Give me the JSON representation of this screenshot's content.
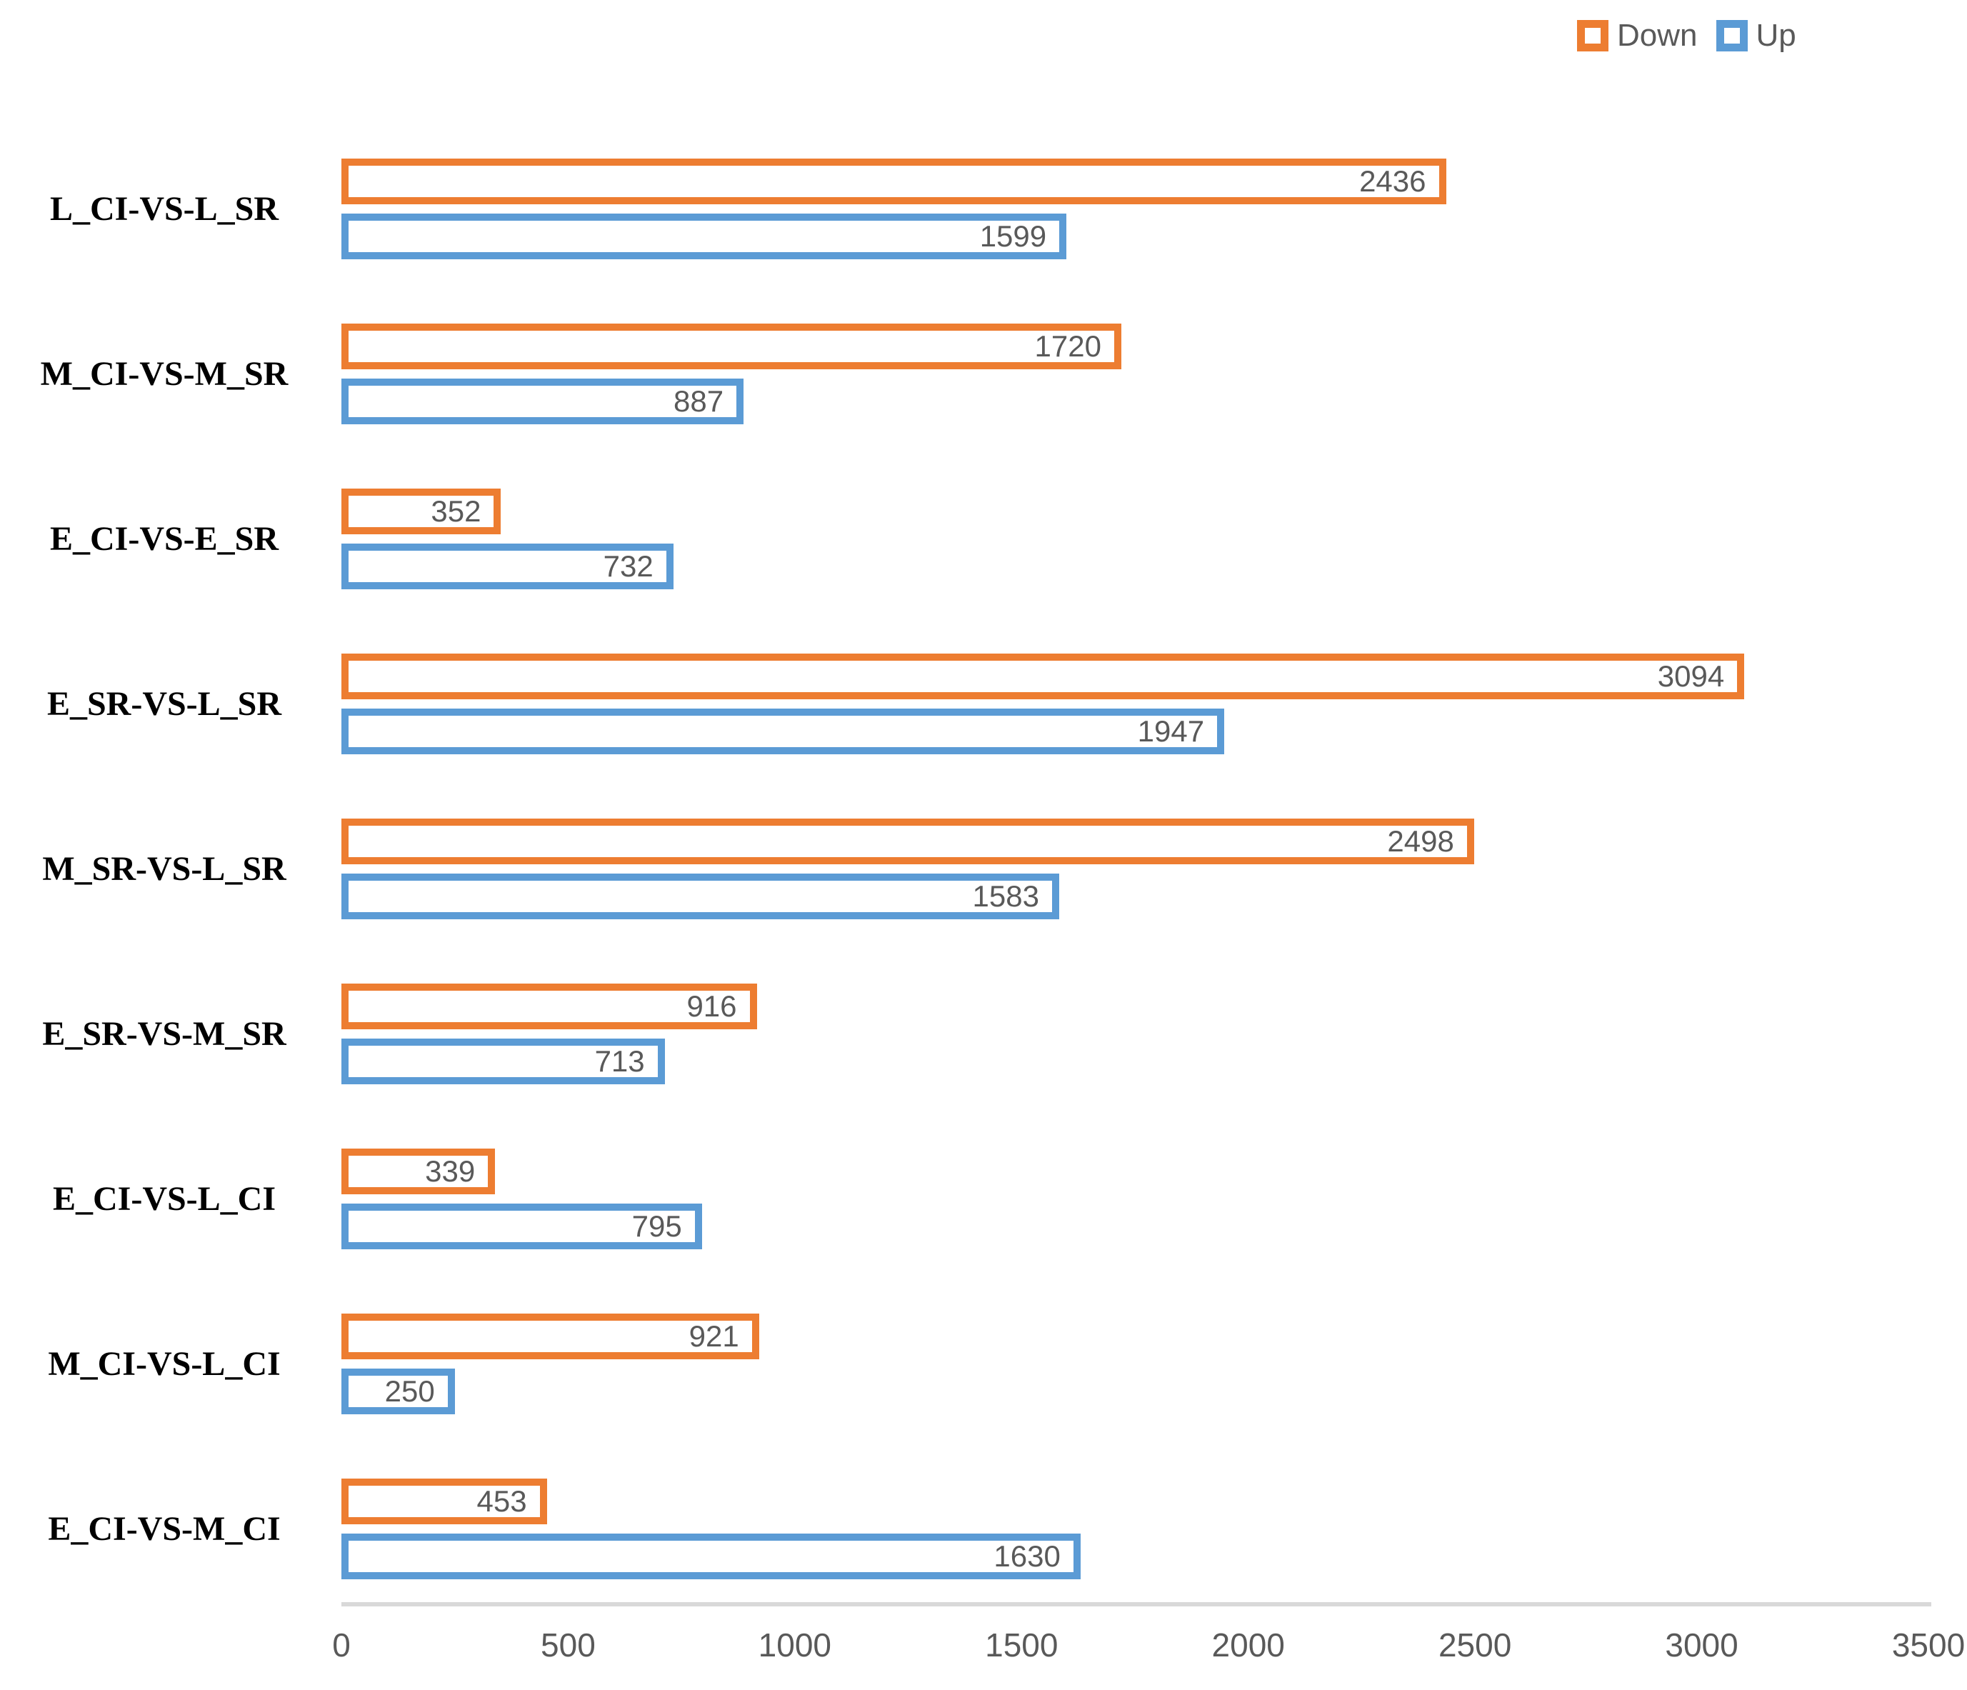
{
  "legend": {
    "items": [
      {
        "label": "Down",
        "color": "#ED7D31"
      },
      {
        "label": "Up",
        "color": "#5B9BD5"
      }
    ]
  },
  "colors": {
    "down": "#ED7D31",
    "up": "#5B9BD5",
    "value_text": "#595959",
    "axis_text": "#595959",
    "axis_line": "#D9D9D9",
    "background": "#FFFFFF",
    "category_text": "#000000"
  },
  "chart_data": {
    "type": "bar",
    "orientation": "horizontal",
    "title": "",
    "xlabel": "",
    "ylabel": "",
    "grid": false,
    "legend_position": "top-right",
    "bar_style": "hollow-outline",
    "xlim": [
      0,
      3500
    ],
    "x_ticks": [
      0,
      500,
      1000,
      1500,
      2000,
      2500,
      3000,
      3500
    ],
    "categories": [
      "L_CI-VS-L_SR",
      "M_CI-VS-M_SR",
      "E_CI-VS-E_SR",
      "E_SR-VS-L_SR",
      "M_SR-VS-L_SR",
      "E_SR-VS-M_SR",
      "E_CI-VS-L_CI",
      "M_CI-VS-L_CI",
      "E_CI-VS-M_CI"
    ],
    "series": [
      {
        "name": "Down",
        "color": "#ED7D31",
        "values": [
          2436,
          1720,
          352,
          3094,
          2498,
          916,
          339,
          921,
          453
        ]
      },
      {
        "name": "Up",
        "color": "#5B9BD5",
        "values": [
          1599,
          887,
          732,
          1947,
          1583,
          713,
          795,
          250,
          1630
        ]
      }
    ]
  }
}
